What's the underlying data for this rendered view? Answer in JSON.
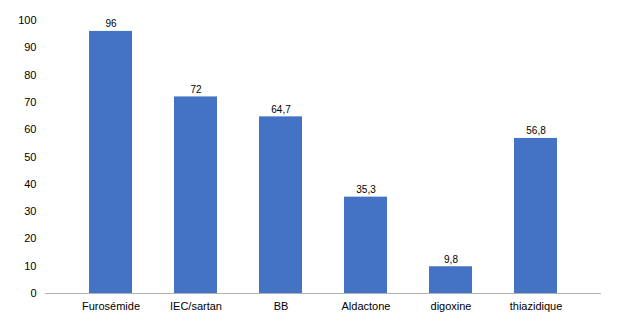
{
  "chart_data": {
    "type": "bar",
    "categories": [
      "Furosémide",
      "IEC/sartan",
      "BB",
      "Aldactone",
      "digoxine",
      "thiazidique"
    ],
    "values": [
      96,
      72,
      64.7,
      35.3,
      9.8,
      56.8
    ],
    "value_labels": [
      "96",
      "72",
      "64,7",
      "35,3",
      "9,8",
      "56,8"
    ],
    "color": "#4472C4",
    "ylim": [
      0,
      100
    ],
    "yticks": [
      0,
      10,
      20,
      30,
      40,
      50,
      60,
      70,
      80,
      90,
      100
    ],
    "grid": false,
    "data_labels": true
  }
}
